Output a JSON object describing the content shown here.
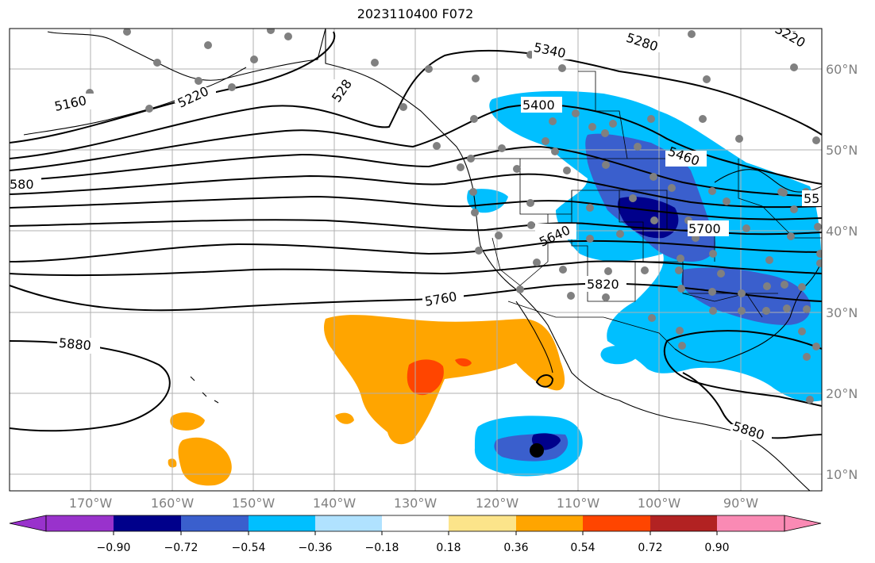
{
  "title": "2023110400 F072",
  "colors": {
    "map_background": "#ffffff",
    "grid": "#b0b0b0",
    "contour": "#000000",
    "station": "#808080",
    "label": "#808080"
  },
  "lat_labels": [
    "60°N",
    "50°N",
    "40°N",
    "30°N",
    "20°N",
    "10°N"
  ],
  "lon_labels": [
    "170°W",
    "160°W",
    "150°W",
    "140°W",
    "130°W",
    "120°W",
    "110°W",
    "100°W",
    "90°W"
  ],
  "contour_labels": [
    "5160",
    "5220",
    "528",
    "5340",
    "5280",
    "5220",
    "5400",
    "5460",
    "55",
    "580",
    "5640",
    "5700",
    "5760",
    "5820",
    "5880",
    "5880"
  ],
  "colorbar": {
    "colors": [
      "#9932cc",
      "#00008b",
      "#3a5fcd",
      "#00bfff",
      "#b0e2ff",
      "#ffffff",
      "#fce48a",
      "#ffa500",
      "#ff4500",
      "#b22222",
      "#fa8ab4",
      "#fa8ab4"
    ],
    "labels": [
      "−0.90",
      "−0.72",
      "−0.54",
      "−0.36",
      "−0.18",
      "0.18",
      "0.36",
      "0.54",
      "0.72",
      "0.90"
    ]
  }
}
